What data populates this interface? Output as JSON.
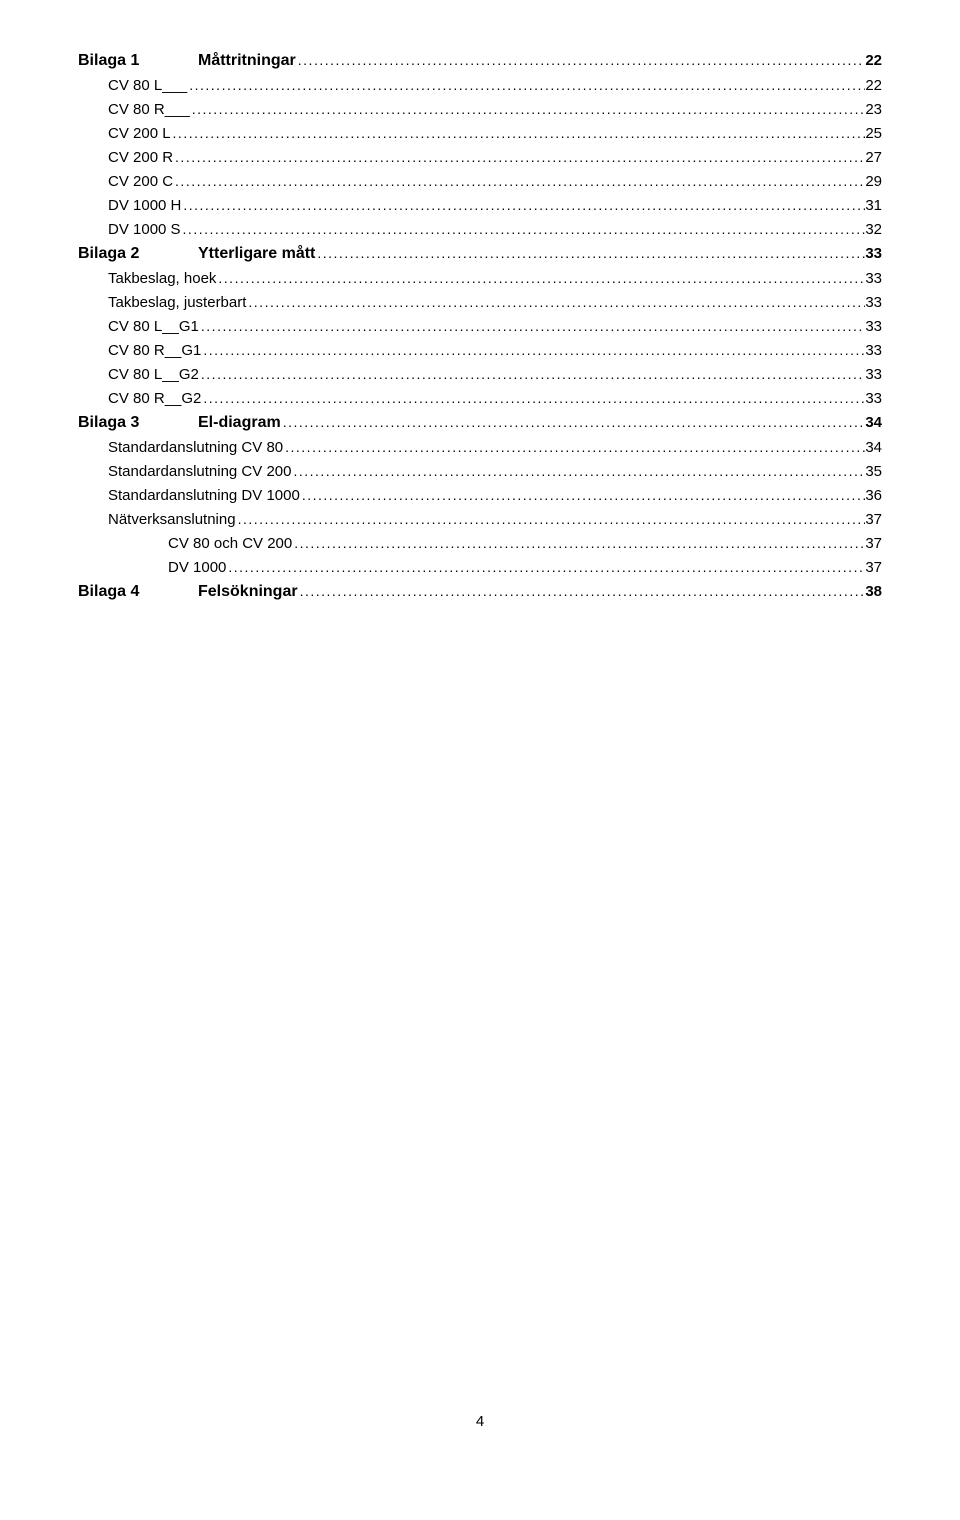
{
  "pageNumber": "4",
  "toc": [
    {
      "level": "heading",
      "prefix": "Bilaga 1",
      "title": "Måttritningar",
      "page": "22"
    },
    {
      "level": "sub",
      "label": "CV 80 L___",
      "page": "22"
    },
    {
      "level": "sub",
      "label": "CV 80 R___",
      "page": "23"
    },
    {
      "level": "sub",
      "label": "CV 200 L",
      "page": "25"
    },
    {
      "level": "sub",
      "label": "CV 200 R",
      "page": "27"
    },
    {
      "level": "sub",
      "label": "CV 200 C",
      "page": "29"
    },
    {
      "level": "sub",
      "label": "DV 1000 H",
      "page": "31"
    },
    {
      "level": "sub",
      "label": "DV 1000 S",
      "page": "32"
    },
    {
      "level": "heading",
      "prefix": "Bilaga 2",
      "title": "Ytterligare mått",
      "page": "33"
    },
    {
      "level": "sub",
      "label": "Takbeslag, hoek",
      "page": "33"
    },
    {
      "level": "sub",
      "label": "Takbeslag, justerbart",
      "page": "33"
    },
    {
      "level": "sub",
      "label": "CV 80 L__G1",
      "page": "33"
    },
    {
      "level": "sub",
      "label": "CV 80 R__G1",
      "page": "33"
    },
    {
      "level": "sub",
      "label": "CV 80 L__G2",
      "page": "33"
    },
    {
      "level": "sub",
      "label": "CV 80 R__G2",
      "page": "33"
    },
    {
      "level": "heading",
      "prefix": "Bilaga 3",
      "title": "El-diagram",
      "page": "34"
    },
    {
      "level": "sub",
      "label": "Standardanslutning CV 80",
      "page": "34"
    },
    {
      "level": "sub",
      "label": "Standardanslutning CV 200",
      "page": "35"
    },
    {
      "level": "sub",
      "label": "Standardanslutning DV 1000",
      "page": "36"
    },
    {
      "level": "sub",
      "label": "Nätverksanslutning",
      "page": "37"
    },
    {
      "level": "subsub",
      "label": "CV 80 och CV 200",
      "page": "37"
    },
    {
      "level": "subsub",
      "label": "DV 1000",
      "page": "37"
    },
    {
      "level": "heading",
      "prefix": "Bilaga 4",
      "title": "Felsökningar",
      "page": "38"
    }
  ]
}
